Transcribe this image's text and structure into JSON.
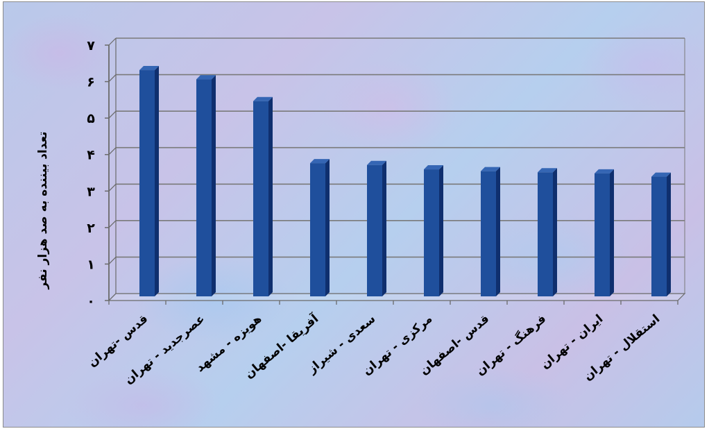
{
  "chart_data": {
    "type": "bar",
    "title": "",
    "xlabel": "",
    "ylabel": "تعداد بیننده به صد هزار نفر",
    "ylim": [
      0,
      7
    ],
    "yticks": [
      0,
      1,
      2,
      3,
      4,
      5,
      6,
      7
    ],
    "ytick_labels": [
      "۰",
      "۱",
      "۲",
      "۳",
      "۴",
      "۵",
      "۶",
      "۷"
    ],
    "grid": true,
    "categories": [
      "قدس -تهران",
      "عصرجدید - تهران",
      "هویزه - مشهد",
      "آفریقا -اصفهان",
      "سعدی - شیراز",
      "مرکزی - تهران",
      "قدس -اصفهان",
      "فرهنگ - تهران",
      "ایران - تهران",
      "استقلال - تهران"
    ],
    "values": [
      6.2,
      5.95,
      5.35,
      3.65,
      3.6,
      3.48,
      3.43,
      3.4,
      3.37,
      3.28
    ],
    "colors": {
      "bar_front": "#1f4f9c",
      "bar_side": "#0f2f6e",
      "bar_top": "#3566b4",
      "grid": "#7a7a7a",
      "axis": "#6a6a6a",
      "text": "#000000"
    }
  }
}
